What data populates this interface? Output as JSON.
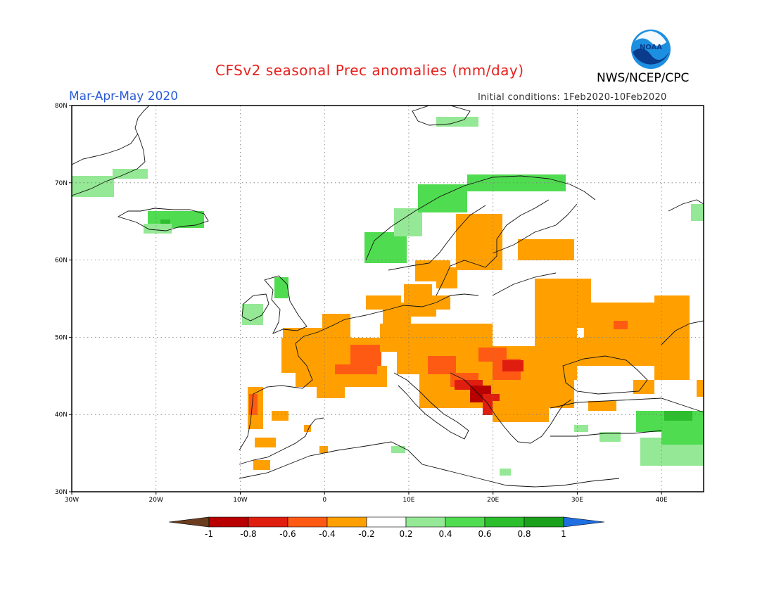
{
  "header": {
    "title": "CFSv2 seasonal Prec anomalies (mm/day)",
    "agency": "NWS/NCEP/CPC",
    "period": "Mar-Apr-May 2020",
    "initial_conditions": "Initial conditions: 1Feb2020-10Feb2020",
    "logo_text": "NOAA",
    "title_color": "#e8201c",
    "period_color": "#2a5bd7"
  },
  "map": {
    "lon_range": [
      -30,
      45
    ],
    "lat_range": [
      30,
      80
    ],
    "lon_ticks": [
      "30W",
      "20W",
      "10W",
      "0",
      "10E",
      "20E",
      "30E",
      "40E"
    ],
    "lat_ticks": [
      "30N",
      "40N",
      "50N",
      "60N",
      "70N",
      "80N"
    ]
  },
  "colorbar": {
    "labels": [
      "-1",
      "-0.8",
      "-0.6",
      "-0.4",
      "-0.2",
      "0.2",
      "0.4",
      "0.6",
      "0.8",
      "1"
    ],
    "colors": {
      "lt_-1": "#6b3d1e",
      "-1_-0.8": "#b80000",
      "-0.8_-0.6": "#e01e10",
      "-0.6_-0.4": "#ff5a14",
      "-0.4_-0.2": "#ffa000",
      "-0.2_0.2": "#ffffff",
      "0.2_0.4": "#95e895",
      "0.4_0.6": "#50dc50",
      "0.6_0.8": "#2cbe2c",
      "0.8_1": "#1aa01a",
      "gt_1": "#1f6fe0"
    }
  }
}
